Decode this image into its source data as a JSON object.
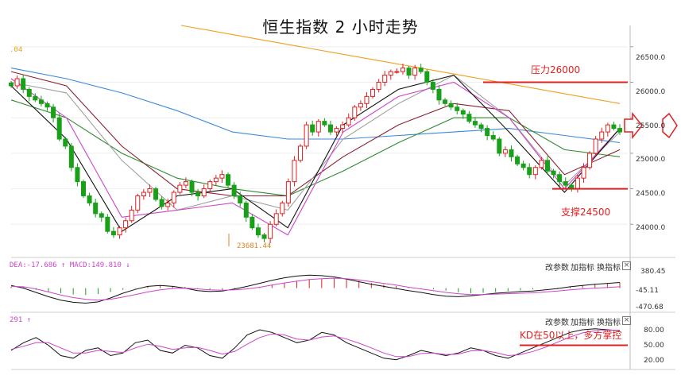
{
  "title": "恒生指数 2 小时走势",
  "corner_value": ".04",
  "low_label": "23681.44",
  "annotations": {
    "resistance": "压力26000",
    "support": "支撑24500",
    "kd_note": "KD在50以上，多方掌控"
  },
  "macd_panel": {
    "legend": "DEA:-17.686 ↑ MACD:149.810 ↓",
    "buttons": [
      "改参数",
      "加指标",
      "换指标"
    ],
    "close": "×",
    "ticks": [
      "380.45",
      "-45.11",
      "-470.68"
    ]
  },
  "kd_panel": {
    "legend": "291 ↑",
    "buttons": [
      "改参数",
      "加指标",
      "换指标"
    ],
    "close": "×",
    "ticks": [
      "80.00",
      "50.00",
      "20.00"
    ]
  },
  "colors": {
    "up": "#e02020",
    "down": "#18a018",
    "ma_orange": "#f0a020",
    "ma_blue": "#3a8ad8",
    "ma_green": "#2e8b2e",
    "ma_maroon": "#8b2030",
    "ma_gray": "#a0a0a0",
    "ma_pink": "#cc44cc",
    "ma_black": "#111111",
    "annotation": "#e02020"
  },
  "chart_data": {
    "type": "candlestick",
    "title": "恒生指数 2 小时走势",
    "ylim": [
      23600,
      26800
    ],
    "yticks": [
      "26500.0",
      "26000.0",
      "25500.0",
      "25000.0",
      "24500.0",
      "24000.0"
    ],
    "resistance_level": 26000,
    "support_level": 24500,
    "low_point": 23681.44,
    "close_series": [
      25950,
      26050,
      25900,
      25800,
      25750,
      25700,
      25650,
      25500,
      25200,
      25100,
      24800,
      24600,
      24400,
      24300,
      24150,
      24100,
      23900,
      23850,
      23950,
      24050,
      24200,
      24400,
      24450,
      24500,
      24350,
      24250,
      24300,
      24450,
      24550,
      24600,
      24450,
      24400,
      24500,
      24600,
      24650,
      24700,
      24550,
      24400,
      24300,
      24100,
      23950,
      23850,
      23800,
      24000,
      24150,
      24300,
      24600,
      24900,
      25100,
      25400,
      25300,
      25450,
      25400,
      25300,
      25350,
      25400,
      25500,
      25650,
      25700,
      25800,
      25900,
      26000,
      26100,
      26150,
      26150,
      26200,
      26100,
      26200,
      26150,
      26000,
      25900,
      25750,
      25700,
      25650,
      25600,
      25550,
      25450,
      25400,
      25350,
      25250,
      25200,
      25000,
      25050,
      24950,
      24850,
      24800,
      24700,
      24800,
      24900,
      24750,
      24700,
      24600,
      24550,
      24500,
      24650,
      24800,
      25000,
      25200,
      25300,
      25400,
      25350,
      25300
    ],
    "ma_series": [
      {
        "color": "orange",
        "values": [
          26800,
          26700,
          26600,
          26500,
          26400,
          26300,
          26200,
          26100,
          26000,
          25900,
          25800,
          25700
        ]
      },
      {
        "color": "blue",
        "values": [
          26200,
          26050,
          25850,
          25600,
          25300,
          25200,
          25200,
          25250,
          25300,
          25350,
          25250,
          25150
        ]
      },
      {
        "color": "green",
        "values": [
          25750,
          25500,
          25000,
          24650,
          24500,
          24400,
          24750,
          25150,
          25500,
          25500,
          25050,
          24950
        ]
      },
      {
        "color": "maroon",
        "values": [
          26150,
          25950,
          25100,
          24500,
          24400,
          24400,
          24950,
          25400,
          25700,
          25600,
          24700,
          25050
        ]
      },
      {
        "color": "gray",
        "values": [
          26000,
          25850,
          24900,
          24200,
          24400,
          24200,
          25200,
          25700,
          26100,
          25500,
          24550,
          25300
        ]
      },
      {
        "color": "pink",
        "values": [
          26050,
          25500,
          24100,
          24200,
          24300,
          23850,
          25300,
          25800,
          26000,
          25500,
          24500,
          25350
        ]
      },
      {
        "color": "black",
        "values": [
          25950,
          25200,
          23900,
          24400,
          24500,
          23950,
          25400,
          25900,
          26100,
          25300,
          24450,
          25350
        ]
      }
    ],
    "macd": {
      "ylim": [
        -470.68,
        380.45
      ],
      "histogram": [
        30,
        20,
        -40,
        -80,
        -120,
        -150,
        -160,
        -140,
        -90,
        -40,
        10,
        40,
        60,
        50,
        30,
        -20,
        -50,
        -60,
        -40,
        -10,
        30,
        80,
        130,
        170,
        200,
        220,
        230,
        210,
        170,
        120,
        80,
        50,
        20,
        -10,
        -30,
        -60,
        -100,
        -120,
        -110,
        -90,
        -70,
        -50,
        -30,
        -10,
        10,
        40,
        70,
        100,
        120,
        130
      ],
      "dif": [
        60,
        0,
        -100,
        -200,
        -280,
        -330,
        -350,
        -320,
        -230,
        -120,
        -30,
        40,
        60,
        40,
        0,
        -60,
        -80,
        -70,
        -20,
        40,
        110,
        180,
        240,
        280,
        300,
        290,
        260,
        210,
        150,
        90,
        40,
        -10,
        -60,
        -100,
        -150,
        -190,
        -200,
        -180,
        -150,
        -120,
        -100,
        -80,
        -70,
        -40,
        -10,
        30,
        60,
        90,
        110,
        130
      ],
      "dea": [
        40,
        30,
        -20,
        -90,
        -160,
        -220,
        -260,
        -280,
        -260,
        -210,
        -150,
        -90,
        -40,
        -10,
        0,
        -20,
        -40,
        -50,
        -40,
        -20,
        20,
        70,
        120,
        160,
        200,
        220,
        230,
        220,
        190,
        150,
        110,
        70,
        20,
        -20,
        -60,
        -100,
        -130,
        -150,
        -150,
        -140,
        -130,
        -120,
        -110,
        -90,
        -70,
        -40,
        -20,
        0,
        15,
        30
      ]
    },
    "kd": {
      "ylim": [
        20,
        80
      ],
      "k": [
        40,
        55,
        65,
        50,
        30,
        25,
        40,
        45,
        30,
        35,
        55,
        60,
        40,
        35,
        50,
        45,
        30,
        25,
        45,
        70,
        80,
        75,
        65,
        55,
        60,
        75,
        70,
        55,
        45,
        35,
        25,
        22,
        30,
        40,
        35,
        30,
        35,
        45,
        40,
        30,
        25,
        35,
        45,
        55,
        65,
        75,
        80,
        82,
        80,
        78
      ],
      "d": [
        42,
        48,
        55,
        55,
        45,
        35,
        35,
        40,
        38,
        36,
        45,
        52,
        48,
        42,
        45,
        46,
        40,
        33,
        38,
        52,
        65,
        72,
        70,
        62,
        60,
        66,
        68,
        62,
        54,
        45,
        35,
        28,
        28,
        34,
        35,
        32,
        33,
        39,
        40,
        36,
        30,
        32,
        38,
        46,
        56,
        66,
        74,
        78,
        79,
        79
      ]
    }
  }
}
